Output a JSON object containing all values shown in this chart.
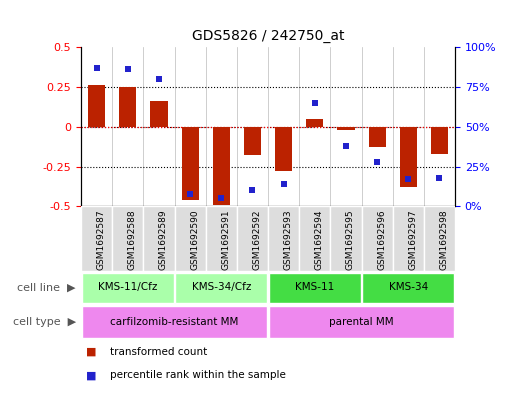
{
  "title": "GDS5826 / 242750_at",
  "samples": [
    "GSM1692587",
    "GSM1692588",
    "GSM1692589",
    "GSM1692590",
    "GSM1692591",
    "GSM1692592",
    "GSM1692593",
    "GSM1692594",
    "GSM1692595",
    "GSM1692596",
    "GSM1692597",
    "GSM1692598"
  ],
  "transformed_count": [
    0.26,
    0.25,
    0.16,
    -0.46,
    -0.49,
    -0.18,
    -0.28,
    0.05,
    -0.02,
    -0.13,
    -0.38,
    -0.17
  ],
  "percentile_rank": [
    87,
    86,
    80,
    8,
    5,
    10,
    14,
    65,
    38,
    28,
    17,
    18
  ],
  "cell_line_groups": [
    {
      "label": "KMS-11/Cfz",
      "start": 0,
      "end": 3,
      "color": "#aaffaa"
    },
    {
      "label": "KMS-34/Cfz",
      "start": 3,
      "end": 6,
      "color": "#aaffaa"
    },
    {
      "label": "KMS-11",
      "start": 6,
      "end": 9,
      "color": "#44dd44"
    },
    {
      "label": "KMS-34",
      "start": 9,
      "end": 12,
      "color": "#44dd44"
    }
  ],
  "cell_type_groups": [
    {
      "label": "carfilzomib-resistant MM",
      "start": 0,
      "end": 6,
      "color": "#ee88ee"
    },
    {
      "label": "parental MM",
      "start": 6,
      "end": 12,
      "color": "#ee88ee"
    }
  ],
  "bar_color": "#BB2200",
  "scatter_color": "#2222CC",
  "ylim_left": [
    -0.5,
    0.5
  ],
  "ylim_right": [
    0,
    100
  ],
  "yticks_left": [
    -0.5,
    -0.25,
    0,
    0.25,
    0.5
  ],
  "ytick_labels_left": [
    "-0.5",
    "-0.25",
    "0",
    "0.25",
    "0.5"
  ],
  "yticks_right": [
    0,
    25,
    50,
    75,
    100
  ],
  "ytick_labels_right": [
    "0%",
    "25%",
    "50%",
    "75%",
    "100%"
  ],
  "hline_vals": [
    -0.25,
    0,
    0.25
  ],
  "background_color": "#FFFFFF",
  "legend_items": [
    {
      "label": "transformed count",
      "color": "#BB2200"
    },
    {
      "label": "percentile rank within the sample",
      "color": "#2222CC"
    }
  ]
}
